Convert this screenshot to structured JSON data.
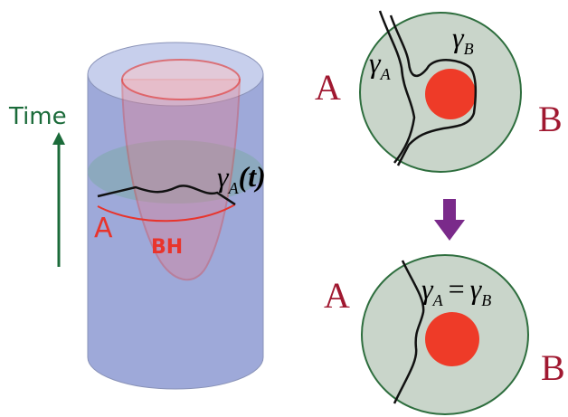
{
  "left": {
    "time_label": "Time",
    "gamma_label": {
      "base": "γ",
      "sub": "A",
      "rest": "(t)"
    },
    "region_label": "A",
    "bh_label": "BH"
  },
  "top_right": {
    "left_label": "A",
    "right_label": "B",
    "gamma_a": {
      "base": "γ",
      "sub": "A"
    },
    "gamma_b": {
      "base": "γ",
      "sub": "B"
    }
  },
  "bottom_right": {
    "left_label": "A",
    "right_label": "B",
    "equation": {
      "lhs_base": "γ",
      "lhs_sub": "A",
      "op": "=",
      "rhs_base": "γ",
      "rhs_sub": "B"
    }
  }
}
